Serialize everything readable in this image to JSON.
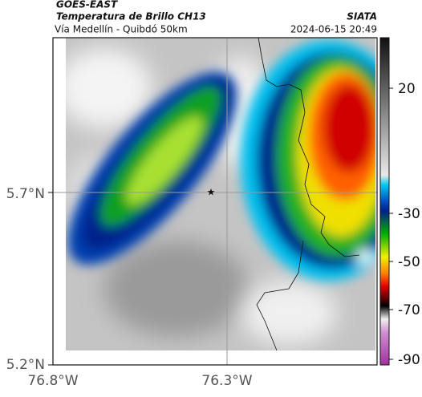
{
  "header": {
    "title": "GOES-EAST",
    "subtitle": "Temperatura de Brillo CH13",
    "region": "Vía Medellín - Quibdó 50km",
    "source": "SIATA",
    "datetime": "2024-06-15 20:49"
  },
  "axes": {
    "y_labels": [
      "5.7°N",
      "5.2°N"
    ],
    "x_labels": [
      "76.8°W",
      "76.3°W"
    ]
  },
  "colorbar": {
    "ticks": [
      "20",
      "-30",
      "-50",
      "-70",
      "-90"
    ]
  }
}
